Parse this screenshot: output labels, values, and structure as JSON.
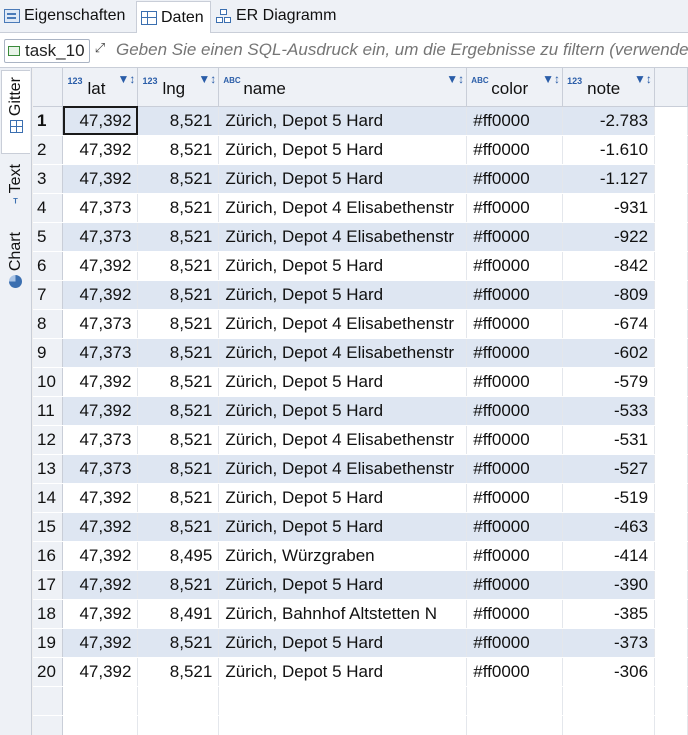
{
  "tabs": [
    {
      "label": "Eigenschaften",
      "icon": "properties-icon",
      "active": false
    },
    {
      "label": "Daten",
      "icon": "grid-icon",
      "active": true
    },
    {
      "label": "ER Diagramm",
      "icon": "er-diagram-icon",
      "active": false
    }
  ],
  "filter": {
    "task_label": "task_10",
    "placeholder": "Geben Sie einen SQL-Ausdruck ein, um die Ergebnisse zu filtern (verwende"
  },
  "side_tabs": [
    {
      "label": "Gitter",
      "icon": "grid-view-icon",
      "active": true
    },
    {
      "label": "Text",
      "icon": "text-view-icon",
      "active": false
    },
    {
      "label": "Chart",
      "icon": "chart-view-icon",
      "active": false
    }
  ],
  "columns": [
    {
      "name": "lat",
      "type": "123"
    },
    {
      "name": "lng",
      "type": "123"
    },
    {
      "name": "name",
      "type": "ABC"
    },
    {
      "name": "color",
      "type": "ABC"
    },
    {
      "name": "note",
      "type": "123"
    }
  ],
  "rows": [
    [
      "47,392",
      "8,521",
      "Zürich, Depot 5 Hard",
      "#ff0000",
      "-2.783"
    ],
    [
      "47,392",
      "8,521",
      "Zürich, Depot 5 Hard",
      "#ff0000",
      "-1.610"
    ],
    [
      "47,392",
      "8,521",
      "Zürich, Depot 5 Hard",
      "#ff0000",
      "-1.127"
    ],
    [
      "47,373",
      "8,521",
      "Zürich, Depot 4 Elisabethenstr",
      "#ff0000",
      "-931"
    ],
    [
      "47,373",
      "8,521",
      "Zürich, Depot 4 Elisabethenstr",
      "#ff0000",
      "-922"
    ],
    [
      "47,392",
      "8,521",
      "Zürich, Depot 5 Hard",
      "#ff0000",
      "-842"
    ],
    [
      "47,392",
      "8,521",
      "Zürich, Depot 5 Hard",
      "#ff0000",
      "-809"
    ],
    [
      "47,373",
      "8,521",
      "Zürich, Depot 4 Elisabethenstr",
      "#ff0000",
      "-674"
    ],
    [
      "47,373",
      "8,521",
      "Zürich, Depot 4 Elisabethenstr",
      "#ff0000",
      "-602"
    ],
    [
      "47,392",
      "8,521",
      "Zürich, Depot 5 Hard",
      "#ff0000",
      "-579"
    ],
    [
      "47,392",
      "8,521",
      "Zürich, Depot 5 Hard",
      "#ff0000",
      "-533"
    ],
    [
      "47,373",
      "8,521",
      "Zürich, Depot 4 Elisabethenstr",
      "#ff0000",
      "-531"
    ],
    [
      "47,373",
      "8,521",
      "Zürich, Depot 4 Elisabethenstr",
      "#ff0000",
      "-527"
    ],
    [
      "47,392",
      "8,521",
      "Zürich, Depot 5 Hard",
      "#ff0000",
      "-519"
    ],
    [
      "47,392",
      "8,521",
      "Zürich, Depot 5 Hard",
      "#ff0000",
      "-463"
    ],
    [
      "47,392",
      "8,495",
      "Zürich, Würzgraben",
      "#ff0000",
      "-414"
    ],
    [
      "47,392",
      "8,521",
      "Zürich, Depot 5 Hard",
      "#ff0000",
      "-390"
    ],
    [
      "47,392",
      "8,491",
      "Zürich, Bahnhof Altstetten N",
      "#ff0000",
      "-385"
    ],
    [
      "47,392",
      "8,521",
      "Zürich, Depot 5 Hard",
      "#ff0000",
      "-373"
    ],
    [
      "47,392",
      "8,521",
      "Zürich, Depot 5 Hard",
      "#ff0000",
      "-306"
    ]
  ],
  "row_numbers": [
    "1",
    "2",
    "3",
    "4",
    "5",
    "6",
    "7",
    "8",
    "9",
    "10",
    "11",
    "12",
    "13",
    "14",
    "15",
    "16",
    "17",
    "18",
    "19",
    "20"
  ],
  "colors": {
    "accent": "#2a5da8",
    "row_alt": "#dee6f2",
    "header_bg": "#eef1f6"
  }
}
